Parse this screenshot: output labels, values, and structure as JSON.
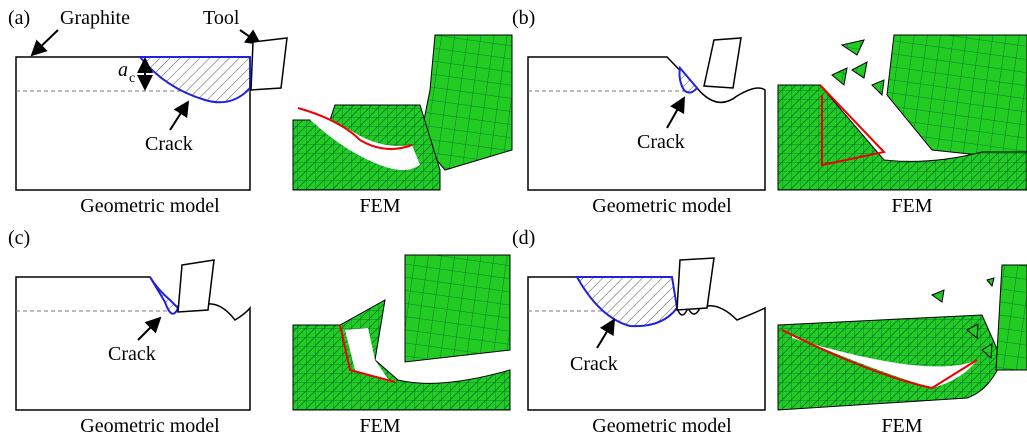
{
  "panels": [
    {
      "label": "(a)",
      "workpiece_label": "Graphite",
      "tool_label": "Tool",
      "depth_symbol": "a",
      "depth_subscript": "c",
      "crack_label": "Crack",
      "geometric_caption": "Geometric model",
      "fem_caption": "FEM"
    },
    {
      "label": "(b)",
      "crack_label": "Crack",
      "geometric_caption": "Geometric model",
      "fem_caption": "FEM"
    },
    {
      "label": "(c)",
      "crack_label": "Crack",
      "geometric_caption": "Geometric model",
      "fem_caption": "FEM"
    },
    {
      "label": "(d)",
      "crack_label": "Crack",
      "geometric_caption": "Geometric model",
      "fem_caption": "FEM"
    }
  ]
}
